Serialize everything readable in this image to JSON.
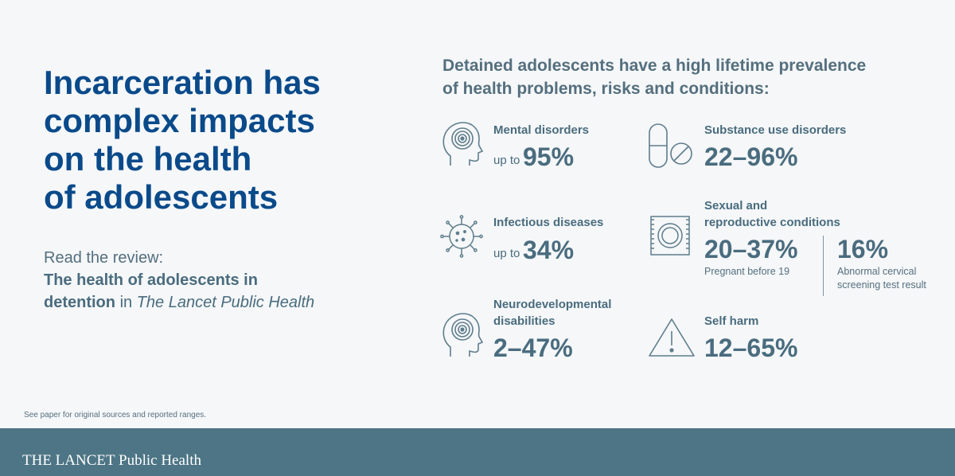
{
  "headline": [
    "Incarceration has",
    "complex impacts",
    "on the health",
    "of adolescents"
  ],
  "review": {
    "label": "Read the review:",
    "title_line1": "The health of adolescents in",
    "title_line2": "detention",
    "in_word": "in",
    "journal": "The Lancet Public Health"
  },
  "intro": [
    "Detained adolescents have a high lifetime prevalence",
    "of health problems, risks and conditions:"
  ],
  "stats": {
    "mental": {
      "icon": "head-target-icon",
      "label": "Mental disorders",
      "prefix": "up to",
      "value": "95%"
    },
    "substance": {
      "icon": "pill-icon",
      "label": "Substance use disorders",
      "value": "22–96%"
    },
    "infectious": {
      "icon": "virus-icon",
      "label": "Infectious diseases",
      "prefix": "up to",
      "value": "34%"
    },
    "sexual": {
      "icon": "condom-icon",
      "label_line1": "Sexual and",
      "label_line2": "reproductive conditions",
      "value": "20–37%",
      "caption": "Pregnant before 19",
      "value2": "16%",
      "caption2_line1": "Abnormal cervical",
      "caption2_line2": "screening test result"
    },
    "neuro": {
      "icon": "head-target-icon",
      "label_line1": "Neurodevelopmental",
      "label_line2": "disabilities",
      "value": "2–47%"
    },
    "selfharm": {
      "icon": "warning-icon",
      "label": "Self harm",
      "value": "12–65%"
    }
  },
  "note": "See paper for original sources and reported ranges.",
  "footer": {
    "brand": "THE LANCET Public Health"
  },
  "colors": {
    "headline": "#0a4a8a",
    "text": "#4a6c7e",
    "footer": "#4d7585",
    "background": "#f5f7f9"
  }
}
